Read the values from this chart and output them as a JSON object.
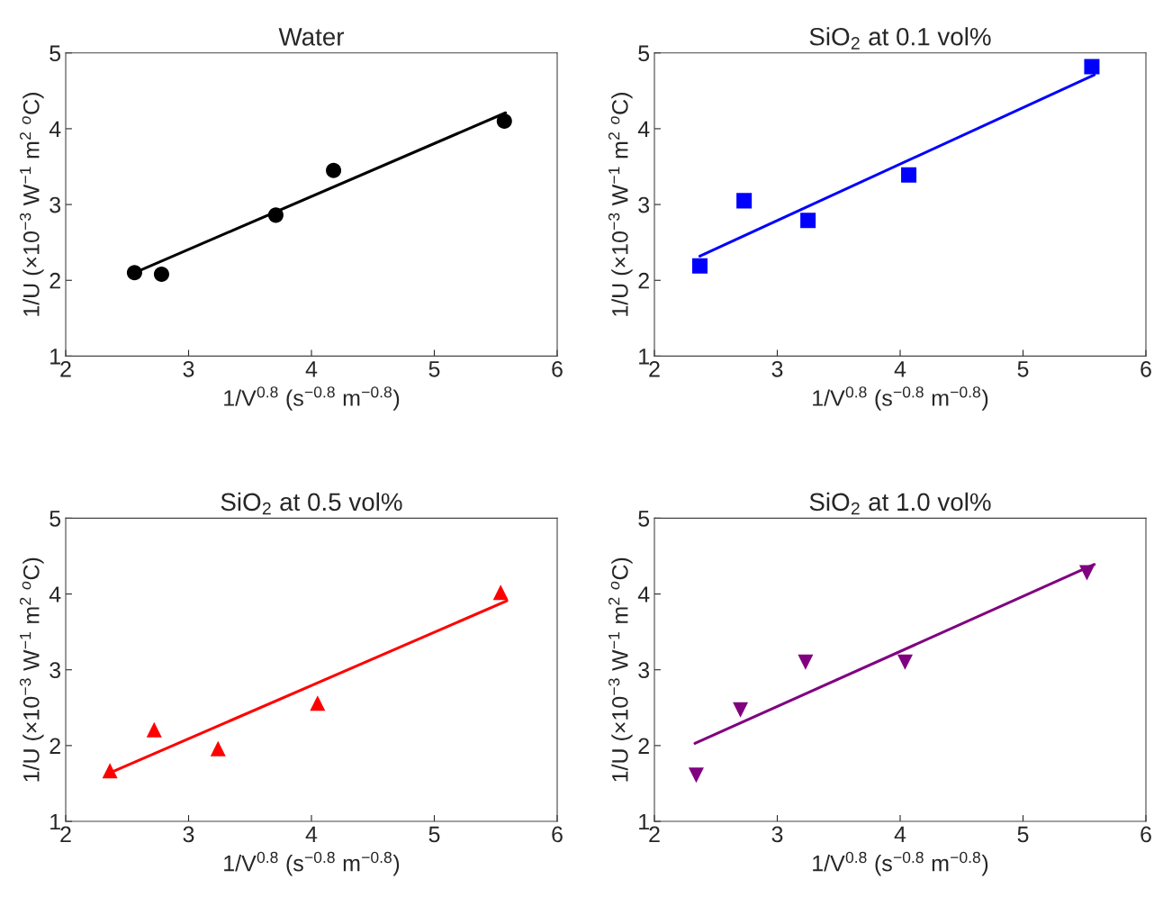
{
  "chart_data": [
    {
      "type": "scatter",
      "title": "Water",
      "xlabel": "1/V$^{0.8}$ (s$^{−0.8}$ m$^{−0.8}$)",
      "ylabel": "1/U (×10$^{−3}$ W$^{−1}$ m$^{2}$ $^{o}$C)",
      "xlim": [
        2,
        6
      ],
      "ylim": [
        1,
        5
      ],
      "xticks": [
        2,
        3,
        4,
        5,
        6
      ],
      "yticks": [
        1,
        2,
        3,
        4,
        5
      ],
      "series": [
        {
          "type": "scatter",
          "color": "#000000",
          "marker": "circle",
          "x": [
            2.56,
            2.78,
            3.71,
            4.18,
            5.57
          ],
          "values": [
            2.1,
            2.08,
            2.86,
            3.45,
            4.1
          ]
        },
        {
          "type": "line",
          "color": "#000000",
          "x": [
            2.56,
            5.58
          ],
          "values": [
            2.1,
            4.21
          ]
        }
      ]
    },
    {
      "type": "scatter",
      "title": "SiO$_{2}$ at 0.1 vol%",
      "xlabel": "1/V$^{0.8}$ (s$^{−0.8}$ m$^{−0.8}$)",
      "ylabel": "1/U (×10$^{−3}$ W$^{−1}$ m$^{2}$ $^{o}$C)",
      "xlim": [
        2,
        6
      ],
      "ylim": [
        1,
        5
      ],
      "xticks": [
        2,
        3,
        4,
        5,
        6
      ],
      "yticks": [
        1,
        2,
        3,
        4,
        5
      ],
      "series": [
        {
          "type": "scatter",
          "color": "#0000ff",
          "marker": "square",
          "x": [
            2.37,
            2.73,
            3.25,
            4.07,
            5.56
          ],
          "values": [
            2.19,
            3.05,
            2.79,
            3.39,
            4.82
          ]
        },
        {
          "type": "line",
          "color": "#0000ff",
          "x": [
            2.37,
            5.58
          ],
          "values": [
            2.32,
            4.71
          ]
        }
      ]
    },
    {
      "type": "scatter",
      "title": "SiO$_{2}$ at 0.5 vol%",
      "xlabel": "1/V$^{0.8}$ (s$^{−0.8}$ m$^{−0.8}$)",
      "ylabel": "1/U (×10$^{−3}$ W$^{−1}$ m$^{2}$ $^{o}$C)",
      "xlim": [
        2,
        6
      ],
      "ylim": [
        1,
        5
      ],
      "xticks": [
        2,
        3,
        4,
        5,
        6
      ],
      "yticks": [
        1,
        2,
        3,
        4,
        5
      ],
      "series": [
        {
          "type": "scatter",
          "color": "#ff0000",
          "marker": "triangle",
          "x": [
            2.36,
            2.72,
            3.24,
            4.05,
            5.54
          ],
          "values": [
            1.67,
            2.21,
            1.96,
            2.56,
            4.02
          ]
        },
        {
          "type": "line",
          "color": "#ff0000",
          "x": [
            2.36,
            5.59
          ],
          "values": [
            1.64,
            3.91
          ]
        }
      ]
    },
    {
      "type": "scatter",
      "title": "SiO$_{2}$ at 1.0 vol%",
      "xlabel": "1/V$^{0.8}$ (s$^{−0.8}$ m$^{−0.8}$)",
      "ylabel": "1/U (×10$^{−3}$ W$^{−1}$ m$^{2}$ $^{o}$C)",
      "xlim": [
        2,
        6
      ],
      "ylim": [
        1,
        5
      ],
      "xticks": [
        2,
        3,
        4,
        5,
        6
      ],
      "yticks": [
        1,
        2,
        3,
        4,
        5
      ],
      "series": [
        {
          "type": "scatter",
          "color": "#800080",
          "marker": "triangle_down",
          "x": [
            2.34,
            2.7,
            3.23,
            4.04,
            5.52
          ],
          "values": [
            1.61,
            2.47,
            3.1,
            3.1,
            4.28
          ]
        },
        {
          "type": "line",
          "color": "#800080",
          "x": [
            2.33,
            5.58
          ],
          "values": [
            2.03,
            4.39
          ]
        }
      ]
    }
  ]
}
